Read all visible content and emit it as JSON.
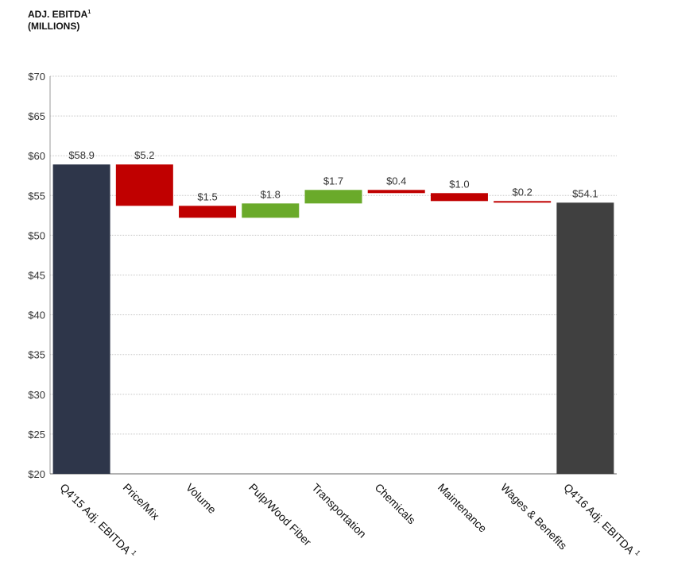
{
  "chart_data": {
    "type": "waterfall",
    "title_line1": "ADJ. EBITDA",
    "title_sup": "1",
    "title_line2": "(MILLIONS)",
    "ylim": [
      20,
      70
    ],
    "yticks": [
      20,
      25,
      30,
      35,
      40,
      45,
      50,
      55,
      60,
      65,
      70
    ],
    "ytick_labels": [
      "$20",
      "$25",
      "$30",
      "$35",
      "$40",
      "$45",
      "$50",
      "$55",
      "$60",
      "$65",
      "$70"
    ],
    "grid": true,
    "steps": [
      {
        "category": "Q4'15 Adj. EBITDA",
        "category_sup": "1",
        "kind": "total",
        "start": 20,
        "end": 58.9,
        "label": "$58.9",
        "color": "#2e364a"
      },
      {
        "category": "Price/Mix",
        "kind": "decrease",
        "start": 58.9,
        "end": 53.7,
        "label": "$5.2",
        "color": "#c00000"
      },
      {
        "category": "Volume",
        "kind": "decrease",
        "start": 53.7,
        "end": 52.2,
        "label": "$1.5",
        "color": "#c00000"
      },
      {
        "category": "Pulp/Wood Fiber",
        "kind": "increase",
        "start": 52.2,
        "end": 54.0,
        "label": "$1.8",
        "color": "#6aaa2a"
      },
      {
        "category": "Transportation",
        "kind": "increase",
        "start": 54.0,
        "end": 55.7,
        "label": "$1.7",
        "color": "#6aaa2a"
      },
      {
        "category": "Chemicals",
        "kind": "decrease",
        "start": 55.7,
        "end": 55.3,
        "label": "$0.4",
        "color": "#c00000"
      },
      {
        "category": "Maintenance",
        "kind": "decrease",
        "start": 55.3,
        "end": 54.3,
        "label": "$1.0",
        "color": "#c00000"
      },
      {
        "category": "Wages & Benefits",
        "kind": "decrease",
        "start": 54.3,
        "end": 54.1,
        "label": "$0.2",
        "color": "#c00000"
      },
      {
        "category": "Q4'16 Adj. EBITDA",
        "category_sup": "1",
        "kind": "total",
        "start": 20,
        "end": 54.1,
        "label": "$54.1",
        "color": "#404040"
      }
    ]
  }
}
